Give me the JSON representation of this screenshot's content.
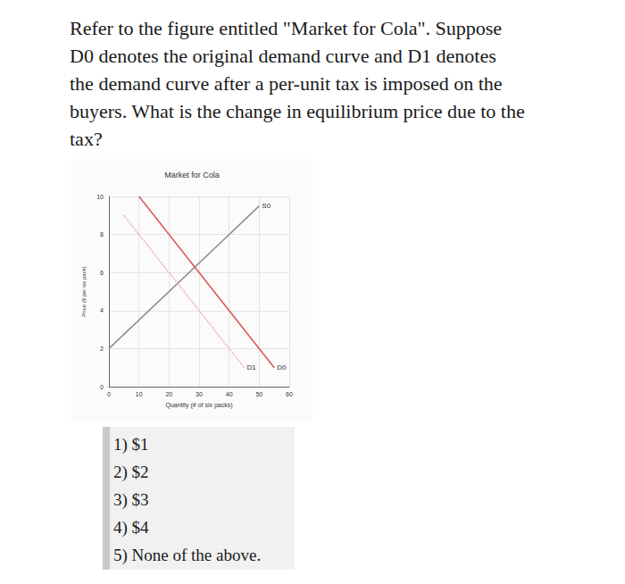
{
  "question_lines": [
    "Refer to the figure entitled \"Market for Cola\". Suppose",
    "D0 denotes the original demand curve and D1 denotes",
    "the demand curve after a per-unit tax is imposed on the",
    "buyers. What is the change in equilibrium price due to the",
    "tax?"
  ],
  "chart_data": {
    "type": "line",
    "title": "Market for Cola",
    "x_label": "Quantity (# of six packs)",
    "y_label": "Price ($ per six pack)",
    "xlim": [
      0,
      60
    ],
    "xticks": [
      0,
      10,
      20,
      30,
      40,
      50,
      60
    ],
    "ylim": [
      0,
      10
    ],
    "yticks": [
      0,
      2,
      4,
      6,
      8,
      10
    ],
    "grid": true,
    "series": [
      {
        "name": "S0",
        "color": "#8c8c8c",
        "x": [
          0,
          50
        ],
        "values": [
          2,
          9.5
        ],
        "line_style": "solid"
      },
      {
        "name": "D0",
        "color": "#d9534f",
        "x": [
          10,
          55
        ],
        "values": [
          10,
          1
        ],
        "line_style": "solid"
      },
      {
        "name": "D1",
        "color": "#eaa29c",
        "x": [
          5,
          45
        ],
        "values": [
          9,
          1
        ],
        "line_style": "dotted"
      }
    ]
  },
  "options": [
    "1) $1",
    "2) $2",
    "3) $3",
    "4) $4",
    "5) None of the above."
  ]
}
